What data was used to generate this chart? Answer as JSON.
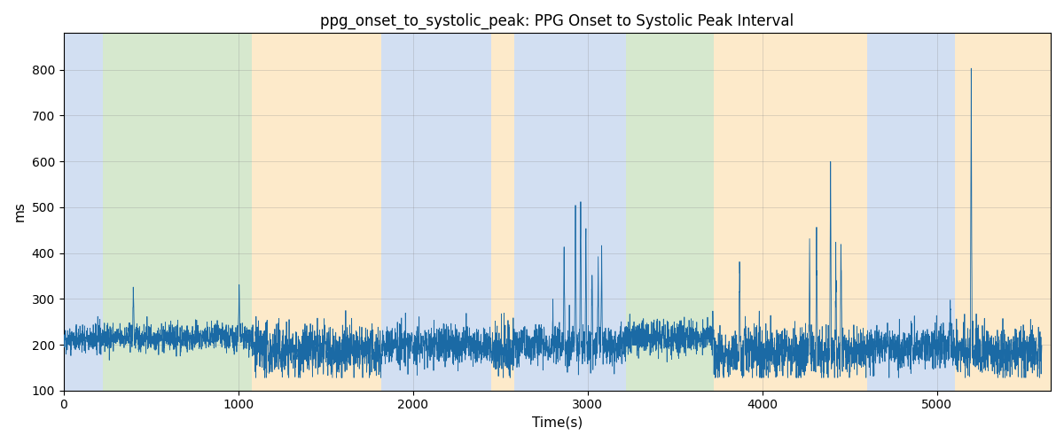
{
  "title": "ppg_onset_to_systolic_peak: PPG Onset to Systolic Peak Interval",
  "xlabel": "Time(s)",
  "ylabel": "ms",
  "ylim": [
    100,
    880
  ],
  "xlim": [
    0,
    5650
  ],
  "yticks": [
    100,
    200,
    300,
    400,
    500,
    600,
    700,
    800
  ],
  "xticks": [
    0,
    1000,
    2000,
    3000,
    4000,
    5000
  ],
  "signal_color": "#1b6aa5",
  "background_color": "#ffffff",
  "bands": [
    {
      "start": 0,
      "end": 225,
      "color": "#aec6e8",
      "alpha": 0.55
    },
    {
      "start": 225,
      "end": 1080,
      "color": "#b5d6a7",
      "alpha": 0.55
    },
    {
      "start": 1080,
      "end": 1820,
      "color": "#fdd9a0",
      "alpha": 0.55
    },
    {
      "start": 1820,
      "end": 2450,
      "color": "#aec6e8",
      "alpha": 0.55
    },
    {
      "start": 2450,
      "end": 2580,
      "color": "#fdd9a0",
      "alpha": 0.55
    },
    {
      "start": 2580,
      "end": 3150,
      "color": "#aec6e8",
      "alpha": 0.55
    },
    {
      "start": 3150,
      "end": 3220,
      "color": "#aec6e8",
      "alpha": 0.55
    },
    {
      "start": 3220,
      "end": 3720,
      "color": "#b5d6a7",
      "alpha": 0.55
    },
    {
      "start": 3720,
      "end": 4600,
      "color": "#fdd9a0",
      "alpha": 0.55
    },
    {
      "start": 4600,
      "end": 5100,
      "color": "#aec6e8",
      "alpha": 0.55
    },
    {
      "start": 5100,
      "end": 5650,
      "color": "#fdd9a0",
      "alpha": 0.55
    }
  ],
  "seed": 42,
  "n_points": 5600
}
